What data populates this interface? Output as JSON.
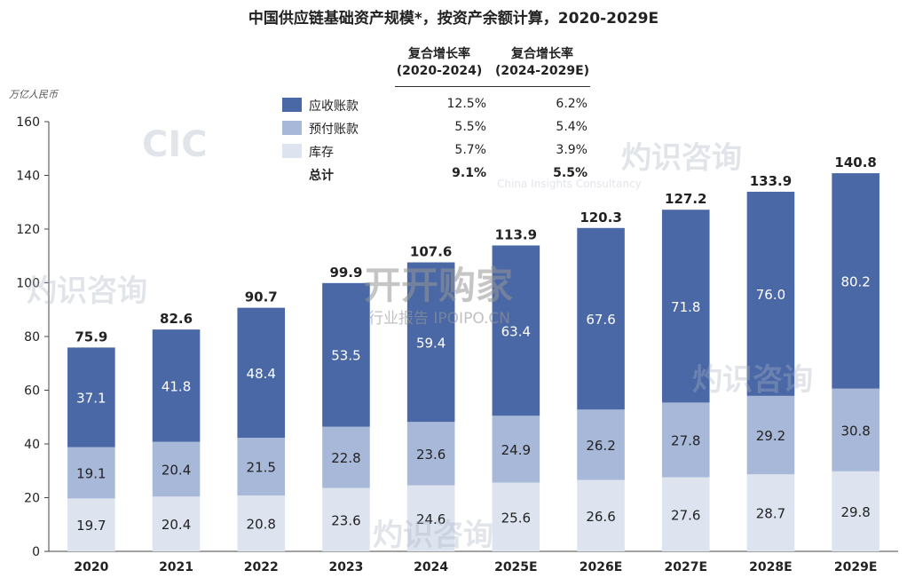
{
  "chart_data": {
    "type": "bar",
    "stacked": true,
    "title": "中国供应链基础资产规模*，按资产余额计算，2020-2029E",
    "ylabel": "万亿人民币",
    "ylim": [
      0,
      160
    ],
    "yticks": [
      0,
      20,
      40,
      60,
      80,
      100,
      120,
      140,
      160
    ],
    "grid": false,
    "legend_position": "top-center",
    "categories": [
      "2020",
      "2021",
      "2022",
      "2023",
      "2024",
      "2025E",
      "2026E",
      "2027E",
      "2028E",
      "2029E"
    ],
    "series": [
      {
        "name": "库存",
        "color": "#dde4f0",
        "values": [
          19.7,
          20.4,
          20.8,
          23.6,
          24.6,
          25.6,
          26.6,
          27.6,
          28.7,
          29.8
        ]
      },
      {
        "name": "预付账款",
        "color": "#a7b8d8",
        "values": [
          19.1,
          20.4,
          21.5,
          22.8,
          23.6,
          24.9,
          26.2,
          27.8,
          29.2,
          30.8
        ]
      },
      {
        "name": "应收账款",
        "color": "#4a68a6",
        "values": [
          37.1,
          41.8,
          48.4,
          53.5,
          59.4,
          63.4,
          67.6,
          71.8,
          76.0,
          80.2
        ]
      }
    ],
    "totals": [
      "75.9",
      "82.6",
      "90.7",
      "99.9",
      "107.6",
      "113.9",
      "120.3",
      "127.2",
      "133.9",
      "140.8"
    ],
    "segment_labels": {
      "bottom": [
        "19.7",
        "20.4",
        "20.8",
        "23.6",
        "24.6",
        "25.6",
        "26.6",
        "27.6",
        "28.7",
        "29.8"
      ],
      "middle": [
        "19.1",
        "20.4",
        "21.5",
        "22.8",
        "23.6",
        "24.9",
        "26.2",
        "27.8",
        "29.2",
        "30.8"
      ],
      "top": [
        "37.1",
        "41.8",
        "48.4",
        "53.5",
        "59.4",
        "63.4",
        "67.6",
        "71.8",
        "76.0",
        "80.2"
      ]
    }
  },
  "legend": {
    "col1_header_1": "复合增长率",
    "col1_header_2": "(2020-2024)",
    "col2_header_1": "复合增长率",
    "col2_header_2": "(2024-2029E)",
    "rows": [
      {
        "label": "应收账款",
        "color": "#4a68a6",
        "cagr1": "12.5%",
        "cagr2": "6.2%"
      },
      {
        "label": "预付账款",
        "color": "#a7b8d8",
        "cagr1": "5.5%",
        "cagr2": "5.4%"
      },
      {
        "label": "库存",
        "color": "#dde4f0",
        "cagr1": "5.7%",
        "cagr2": "3.9%"
      },
      {
        "label": "总计",
        "color": "",
        "cagr1": "9.1%",
        "cagr2": "5.5%"
      }
    ]
  },
  "watermarks": {
    "brand": "CIC",
    "cn": "灼识咨询",
    "en": "China Insights Consultancy",
    "site_cn": "开开购家",
    "site_en": "行业报告 IPOIPO.CN"
  }
}
